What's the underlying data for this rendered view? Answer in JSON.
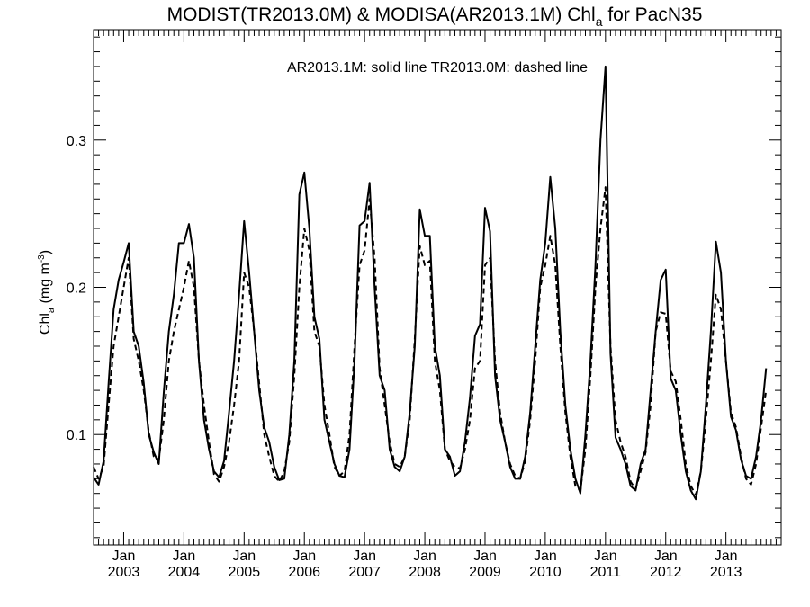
{
  "chart_data": {
    "type": "line",
    "title_main": "MODIST(TR2013.0M) & MODISA(AR2013.1M)  Chl",
    "title_sub": "a",
    "title_tail": " for PacN35",
    "annotation": "AR2013.1M: solid line   TR2013.0M: dashed line",
    "ylabel": {
      "base": "Chl",
      "sub": "a",
      "mid": " (mg m",
      "sup": "-3",
      "end": ")"
    },
    "xlim": [
      "2002-07",
      "2013-12"
    ],
    "ylim": [
      0.025,
      0.375
    ],
    "yticks": [
      {
        "value": 0.1,
        "label": "0.1"
      },
      {
        "value": 0.2,
        "label": "0.2"
      },
      {
        "value": 0.3,
        "label": "0.3"
      }
    ],
    "xticks": [
      {
        "month": "2003-01",
        "top": "Jan",
        "bottom": "2003"
      },
      {
        "month": "2004-01",
        "top": "Jan",
        "bottom": "2004"
      },
      {
        "month": "2005-01",
        "top": "Jan",
        "bottom": "2005"
      },
      {
        "month": "2006-01",
        "top": "Jan",
        "bottom": "2006"
      },
      {
        "month": "2007-01",
        "top": "Jan",
        "bottom": "2007"
      },
      {
        "month": "2008-01",
        "top": "Jan",
        "bottom": "2008"
      },
      {
        "month": "2009-01",
        "top": "Jan",
        "bottom": "2009"
      },
      {
        "month": "2010-01",
        "top": "Jan",
        "bottom": "2010"
      },
      {
        "month": "2011-01",
        "top": "Jan",
        "bottom": "2011"
      },
      {
        "month": "2012-01",
        "top": "Jan",
        "bottom": "2012"
      },
      {
        "month": "2013-01",
        "top": "Jan",
        "bottom": "2013"
      }
    ],
    "series": [
      {
        "id": "AR2013.1M",
        "style": "solid",
        "color": "#000000",
        "x_start": "2002-07",
        "values": [
          0.071,
          0.066,
          0.082,
          0.135,
          0.185,
          0.205,
          0.217,
          0.23,
          0.17,
          0.16,
          0.135,
          0.1,
          0.088,
          0.08,
          0.129,
          0.17,
          0.195,
          0.23,
          0.23,
          0.243,
          0.22,
          0.15,
          0.11,
          0.09,
          0.075,
          0.071,
          0.082,
          0.115,
          0.15,
          0.195,
          0.245,
          0.21,
          0.17,
          0.13,
          0.105,
          0.095,
          0.078,
          0.069,
          0.07,
          0.1,
          0.15,
          0.263,
          0.278,
          0.24,
          0.18,
          0.165,
          0.11,
          0.095,
          0.08,
          0.072,
          0.071,
          0.09,
          0.15,
          0.242,
          0.245,
          0.271,
          0.2,
          0.14,
          0.13,
          0.09,
          0.078,
          0.075,
          0.085,
          0.115,
          0.16,
          0.253,
          0.235,
          0.235,
          0.16,
          0.14,
          0.09,
          0.085,
          0.072,
          0.075,
          0.095,
          0.125,
          0.167,
          0.175,
          0.254,
          0.238,
          0.14,
          0.11,
          0.095,
          0.078,
          0.07,
          0.07,
          0.085,
          0.115,
          0.16,
          0.205,
          0.23,
          0.275,
          0.24,
          0.17,
          0.12,
          0.09,
          0.07,
          0.06,
          0.1,
          0.15,
          0.215,
          0.3,
          0.35,
          0.155,
          0.098,
          0.09,
          0.08,
          0.065,
          0.062,
          0.08,
          0.09,
          0.13,
          0.17,
          0.205,
          0.212,
          0.138,
          0.13,
          0.1,
          0.075,
          0.062,
          0.056,
          0.075,
          0.12,
          0.17,
          0.231,
          0.21,
          0.15,
          0.112,
          0.103,
          0.083,
          0.072,
          0.07,
          0.085,
          0.11,
          0.145
        ]
      },
      {
        "id": "TR2013.0M",
        "style": "dashed",
        "color": "#000000",
        "x_start": "2002-07",
        "values": [
          0.078,
          0.07,
          0.078,
          0.12,
          0.16,
          0.18,
          0.2,
          0.22,
          0.165,
          0.15,
          0.13,
          0.102,
          0.085,
          0.083,
          0.11,
          0.15,
          0.17,
          0.185,
          0.2,
          0.218,
          0.2,
          0.15,
          0.12,
          0.095,
          0.073,
          0.068,
          0.078,
          0.095,
          0.12,
          0.15,
          0.21,
          0.2,
          0.17,
          0.135,
          0.1,
          0.085,
          0.072,
          0.068,
          0.075,
          0.095,
          0.14,
          0.2,
          0.24,
          0.225,
          0.17,
          0.16,
          0.12,
          0.1,
          0.078,
          0.072,
          0.075,
          0.1,
          0.16,
          0.215,
          0.225,
          0.26,
          0.22,
          0.145,
          0.12,
          0.095,
          0.08,
          0.078,
          0.085,
          0.11,
          0.165,
          0.228,
          0.215,
          0.218,
          0.15,
          0.13,
          0.09,
          0.082,
          0.078,
          0.077,
          0.09,
          0.11,
          0.145,
          0.15,
          0.215,
          0.22,
          0.15,
          0.115,
          0.095,
          0.08,
          0.072,
          0.07,
          0.082,
          0.11,
          0.15,
          0.2,
          0.215,
          0.235,
          0.215,
          0.16,
          0.115,
          0.085,
          0.065,
          0.062,
          0.09,
          0.14,
          0.2,
          0.24,
          0.268,
          0.16,
          0.11,
          0.095,
          0.085,
          0.068,
          0.063,
          0.075,
          0.088,
          0.12,
          0.17,
          0.183,
          0.182,
          0.143,
          0.136,
          0.11,
          0.08,
          0.065,
          0.059,
          0.075,
          0.11,
          0.15,
          0.195,
          0.185,
          0.15,
          0.115,
          0.105,
          0.085,
          0.07,
          0.066,
          0.08,
          0.105,
          0.13
        ]
      }
    ],
    "grid": false,
    "legend": "annotation-top-center"
  }
}
